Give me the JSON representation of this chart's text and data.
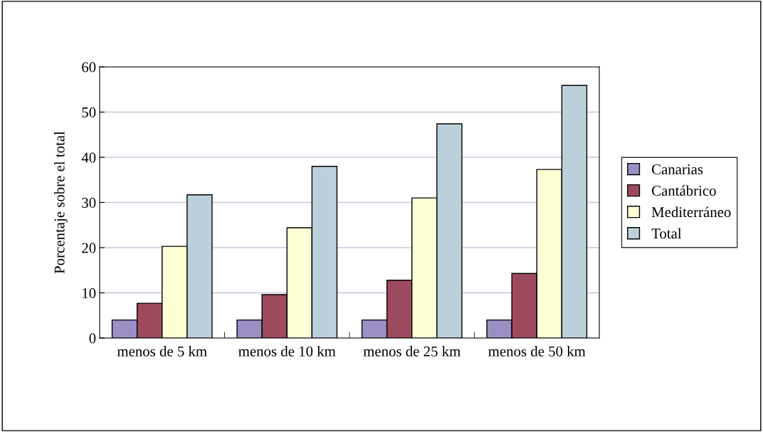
{
  "chart_data": {
    "type": "bar",
    "ylabel": "Porcentaje sobre el total",
    "categories": [
      "menos de 5 km",
      "menos de 10 km",
      "menos de 25 km",
      "menos de 50 km"
    ],
    "series": [
      {
        "name": "Canarias",
        "color": "#9b8fc4",
        "values": [
          4,
          4,
          4,
          4
        ]
      },
      {
        "name": "Cantábrico",
        "color": "#9e4a5e",
        "values": [
          7.7,
          9.6,
          12.8,
          14.3
        ]
      },
      {
        "name": "Mediterráneo",
        "color": "#ffffd6",
        "values": [
          20.3,
          24.4,
          31.0,
          37.3
        ]
      },
      {
        "name": "Total",
        "color": "#bcd0dc",
        "values": [
          31.7,
          38.0,
          47.4,
          55.9
        ]
      }
    ],
    "ylim": [
      0,
      60
    ],
    "yticks": [
      0,
      10,
      20,
      30,
      40,
      50,
      60
    ],
    "grid": "y",
    "legend": "right"
  }
}
